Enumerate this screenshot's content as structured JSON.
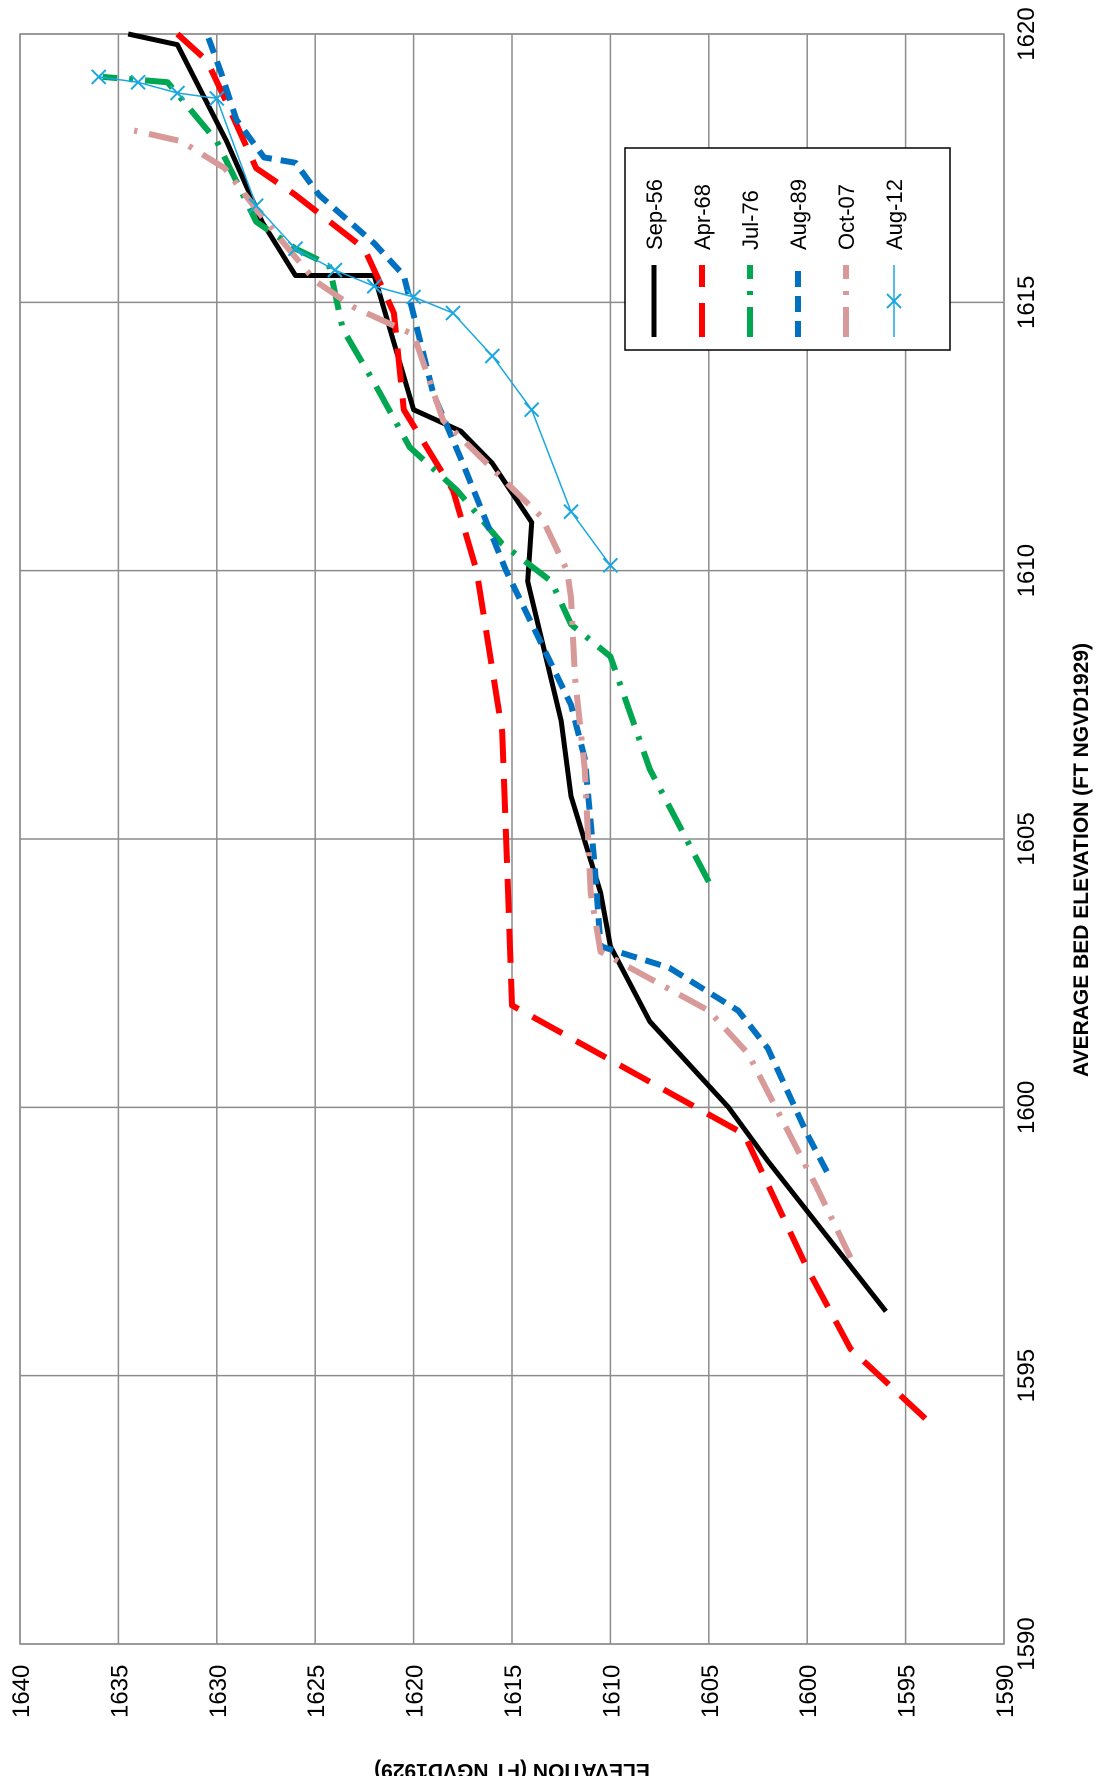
{
  "chart_data": {
    "type": "line",
    "orientation": "rotated-90-clockwise",
    "xlabel": "AVERAGE BED ELEVATION (FT NGVD1929)",
    "ylabel": "ELEVATION (FT NGVD1929)",
    "xlim": [
      1590,
      1620
    ],
    "ylim": [
      1590,
      1640
    ],
    "x_ticks": [
      "1590",
      "1595",
      "1600",
      "1605",
      "1610",
      "1615",
      "1620"
    ],
    "y_ticks": [
      "1590",
      "1595",
      "1600",
      "1605",
      "1610",
      "1615",
      "1620",
      "1625",
      "1630",
      "1635",
      "1640"
    ],
    "grid": true,
    "legend_position": "right",
    "series": [
      {
        "name": "Sep-56",
        "color": "#000000",
        "style": "solid",
        "points": [
          [
            1596.2,
            1596
          ],
          [
            1599,
            1602
          ],
          [
            1600,
            1604
          ],
          [
            1601.6,
            1608
          ],
          [
            1603,
            1610
          ],
          [
            1604,
            1610.5
          ],
          [
            1605.8,
            1612
          ],
          [
            1607.2,
            1612.5
          ],
          [
            1609.8,
            1614.2
          ],
          [
            1610.9,
            1614
          ],
          [
            1612,
            1616
          ],
          [
            1612.6,
            1617.6
          ],
          [
            1613,
            1620
          ],
          [
            1615.5,
            1622
          ],
          [
            1615.5,
            1626
          ],
          [
            1616.5,
            1627.7
          ],
          [
            1618,
            1629.5
          ],
          [
            1619.8,
            1632
          ],
          [
            1620,
            1634.5
          ]
        ]
      },
      {
        "name": "Apr-68",
        "color": "#ff0000",
        "style": "long-dash",
        "points": [
          [
            1594.2,
            1594
          ],
          [
            1595.5,
            1597.8
          ],
          [
            1597,
            1600
          ],
          [
            1599.5,
            1603.2
          ],
          [
            1601.9,
            1615
          ],
          [
            1604,
            1615.2
          ],
          [
            1607,
            1615.5
          ],
          [
            1610,
            1616.8
          ],
          [
            1611.5,
            1618
          ],
          [
            1613,
            1620.5
          ],
          [
            1614.8,
            1621
          ],
          [
            1616,
            1622.5
          ],
          [
            1617,
            1626
          ],
          [
            1617.5,
            1628
          ],
          [
            1618.8,
            1629.6
          ],
          [
            1619.5,
            1630.5
          ],
          [
            1620,
            1632
          ]
        ]
      },
      {
        "name": "Jul-76",
        "color": "#00a650",
        "style": "dash-dot",
        "points": [
          [
            1604.2,
            1605
          ],
          [
            1606.3,
            1608
          ],
          [
            1608.4,
            1610
          ],
          [
            1609,
            1612
          ],
          [
            1609.8,
            1613
          ],
          [
            1610.5,
            1615.5
          ],
          [
            1611.5,
            1617.8
          ],
          [
            1612.3,
            1620.2
          ],
          [
            1613.5,
            1622
          ],
          [
            1614.5,
            1623.6
          ],
          [
            1615.7,
            1624.3
          ],
          [
            1616,
            1626
          ],
          [
            1616.5,
            1628
          ],
          [
            1618,
            1630
          ],
          [
            1619.1,
            1632.5
          ],
          [
            1619.2,
            1635.8
          ]
        ]
      },
      {
        "name": "Aug-89",
        "color": "#0070c0",
        "style": "dash",
        "points": [
          [
            1598.8,
            1599
          ],
          [
            1599.5,
            1600
          ],
          [
            1601.1,
            1602
          ],
          [
            1601.8,
            1603.5
          ],
          [
            1602.6,
            1607
          ],
          [
            1603,
            1610.5
          ],
          [
            1604.5,
            1610.8
          ],
          [
            1606.5,
            1611.3
          ],
          [
            1607.5,
            1612
          ],
          [
            1610,
            1615.3
          ],
          [
            1612,
            1617.5
          ],
          [
            1613.3,
            1619
          ],
          [
            1615.5,
            1620.5
          ],
          [
            1616.1,
            1622
          ],
          [
            1617,
            1624.8
          ],
          [
            1617.6,
            1626
          ],
          [
            1617.7,
            1627.6
          ],
          [
            1618.4,
            1629
          ],
          [
            1619.3,
            1629.8
          ],
          [
            1620,
            1630.5
          ]
        ]
      },
      {
        "name": "Oct-07",
        "color": "#d89999",
        "style": "dash-dot",
        "points": [
          [
            1597.2,
            1597.8
          ],
          [
            1598.5,
            1599.5
          ],
          [
            1601,
            1603
          ],
          [
            1601.8,
            1605
          ],
          [
            1602.9,
            1610.5
          ],
          [
            1604,
            1611
          ],
          [
            1606.3,
            1611.3
          ],
          [
            1608,
            1611.8
          ],
          [
            1609.5,
            1612
          ],
          [
            1610,
            1612.2
          ],
          [
            1611,
            1613.5
          ],
          [
            1612.8,
            1618.5
          ],
          [
            1614.4,
            1620
          ],
          [
            1614.9,
            1623
          ],
          [
            1615.4,
            1625
          ],
          [
            1616.5,
            1627.5
          ],
          [
            1617.5,
            1629.6
          ],
          [
            1618,
            1631.8
          ],
          [
            1618.2,
            1634.2
          ]
        ]
      },
      {
        "name": "Aug-12",
        "color": "#1aa7e0",
        "style": "thin-with-x-markers",
        "points": [
          [
            1610.1,
            1610
          ],
          [
            1611.1,
            1612
          ],
          [
            1613,
            1614
          ],
          [
            1614,
            1616
          ],
          [
            1614.8,
            1618
          ],
          [
            1615.1,
            1620
          ],
          [
            1615.3,
            1622
          ],
          [
            1615.6,
            1624
          ],
          [
            1616,
            1626
          ],
          [
            1616.8,
            1628
          ],
          [
            1618.8,
            1630
          ],
          [
            1618.9,
            1632
          ],
          [
            1619.1,
            1634
          ],
          [
            1619.2,
            1636
          ]
        ]
      }
    ]
  }
}
